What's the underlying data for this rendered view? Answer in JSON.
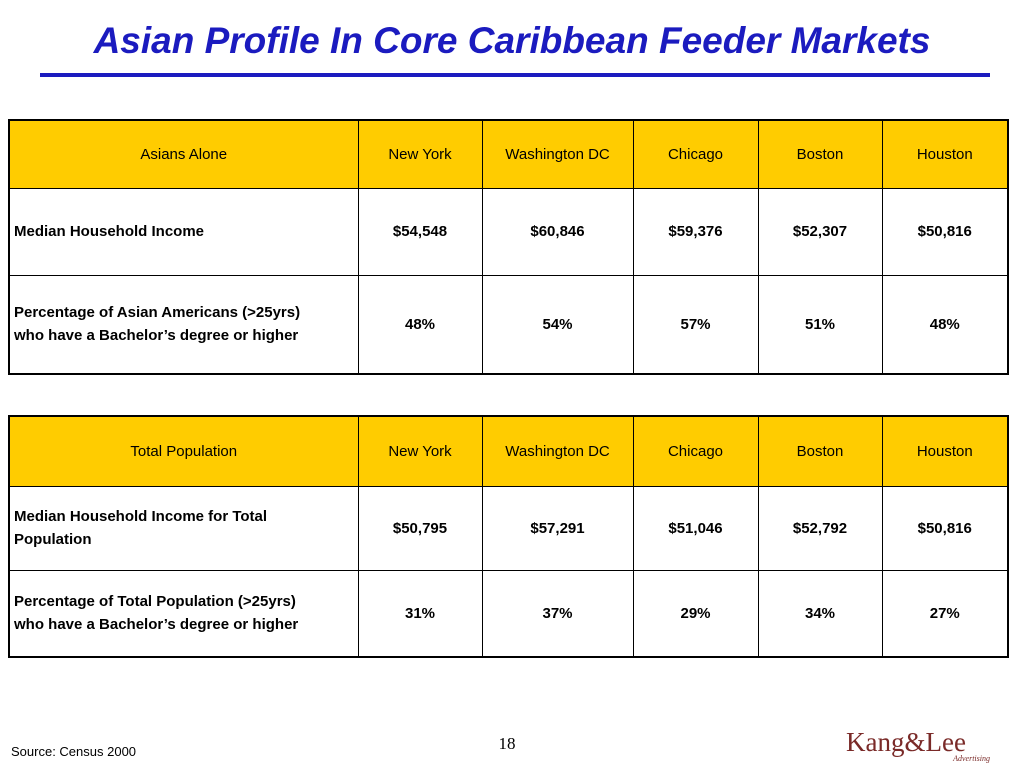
{
  "slide": {
    "title": "Asian Profile In Core Caribbean Feeder Markets",
    "source": "Source: Census 2000",
    "page_number": "18",
    "logo": {
      "text": "Kang&Lee",
      "subtext": "Advertising",
      "color": "#7a2a28"
    }
  },
  "colors": {
    "title": "#1b1bbf",
    "header_fill": "#ffcc00",
    "border": "#000000"
  },
  "table1": {
    "headers": [
      "Asians Alone",
      "New York",
      "Washington DC",
      "Chicago",
      "Boston",
      "Houston"
    ],
    "rows": [
      {
        "label": "Median Household Income",
        "values": [
          "$54,548",
          "$60,846",
          "$59,376",
          "$52,307",
          "$50,816"
        ]
      },
      {
        "label_line1": "Percentage of Asian Americans (>25yrs)",
        "label_line2": "who have a Bachelor’s degree or higher",
        "values": [
          "48%",
          "54%",
          "57%",
          "51%",
          "48%"
        ]
      }
    ]
  },
  "table2": {
    "headers": [
      "Total Population",
      "New York",
      "Washington DC",
      "Chicago",
      "Boston",
      "Houston"
    ],
    "rows": [
      {
        "label_line1": "Median Household Income for Total",
        "label_line2": "Population",
        "values": [
          "$50,795",
          "$57,291",
          "$51,046",
          "$52,792",
          "$50,816"
        ]
      },
      {
        "label_line1": "Percentage of Total Population (>25yrs)",
        "label_line2": "who have a Bachelor’s degree or higher",
        "values": [
          "31%",
          "37%",
          "29%",
          "34%",
          "27%"
        ]
      }
    ]
  }
}
